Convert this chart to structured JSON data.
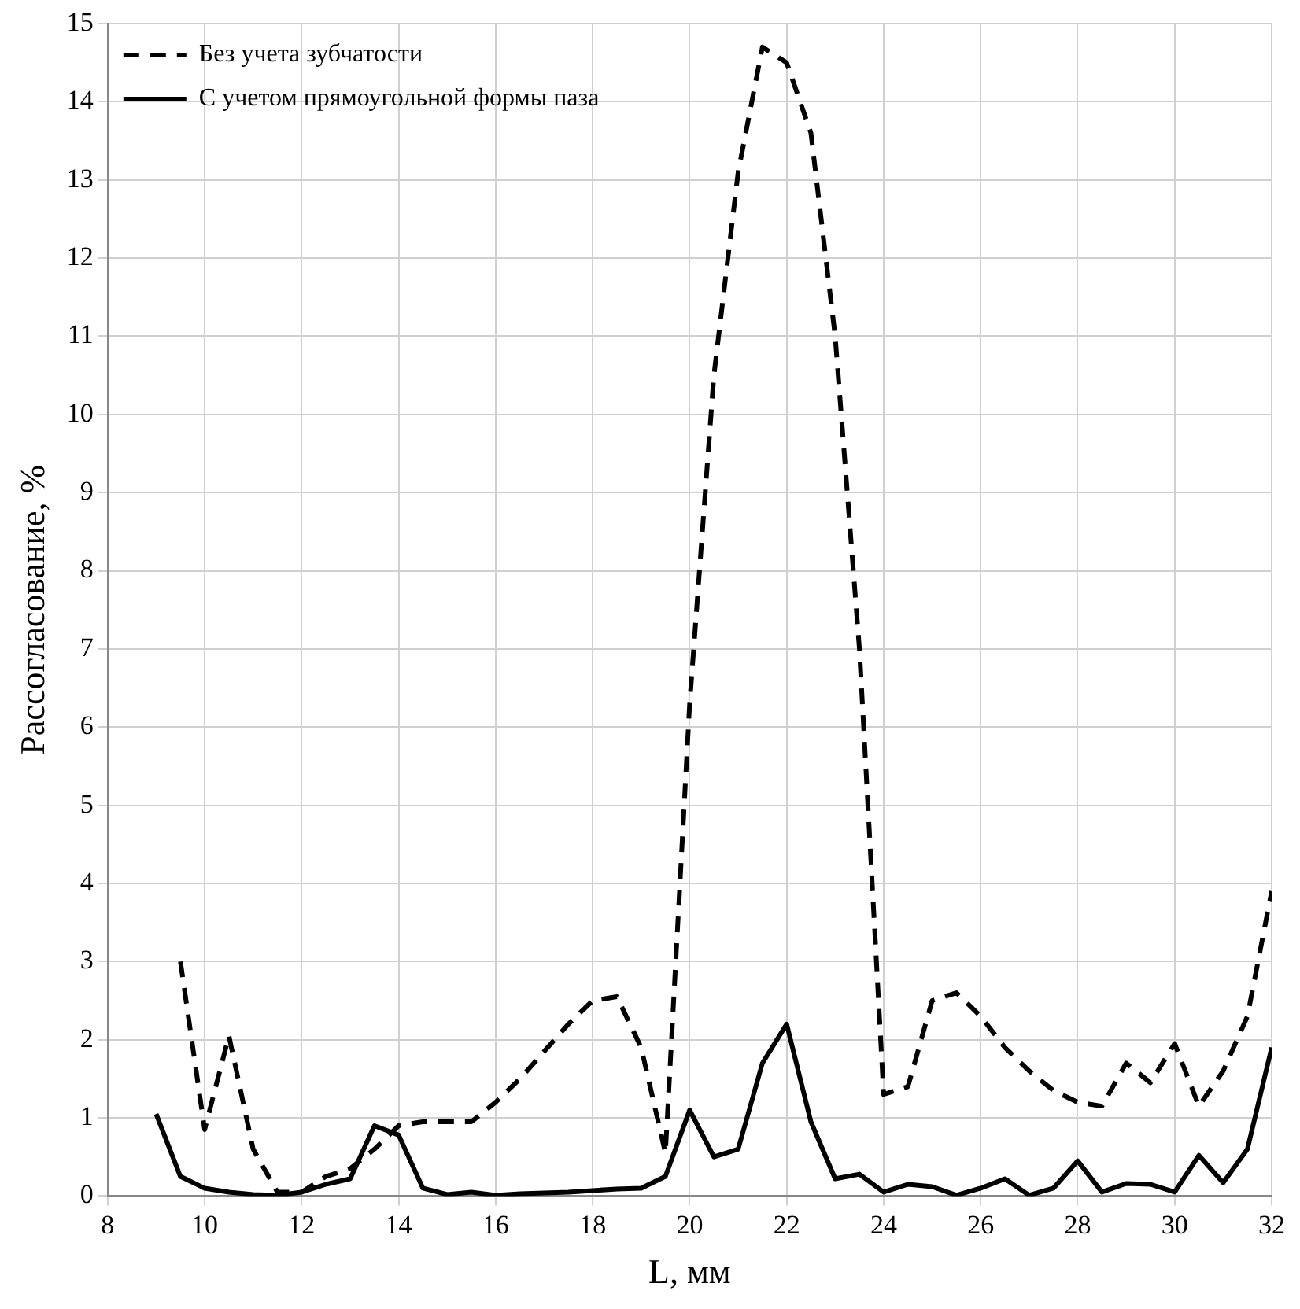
{
  "chart_data": {
    "type": "line",
    "xlabel": "L, мм",
    "ylabel": "Рассогласование, %",
    "xlim": [
      8,
      32
    ],
    "xticks": [
      8,
      10,
      12,
      14,
      16,
      18,
      20,
      22,
      24,
      26,
      28,
      30,
      32
    ],
    "ylim": [
      0,
      15
    ],
    "yticks": [
      0,
      1,
      2,
      3,
      4,
      5,
      6,
      7,
      8,
      9,
      10,
      11,
      12,
      13,
      14,
      15
    ],
    "grid": true,
    "legend": "top left",
    "marker": "none",
    "series": [
      {
        "name": "Без учета зубчатости",
        "color": "#000000",
        "line_style": "dashed",
        "x": [
          9.5,
          10,
          10.5,
          11,
          11.5,
          12,
          12.5,
          13,
          13.5,
          14,
          14.5,
          15,
          15.5,
          16,
          16.5,
          17,
          17.5,
          18,
          18.5,
          19,
          19.5,
          20,
          20.5,
          21,
          21.5,
          22,
          22.5,
          23,
          23.5,
          24,
          24.5,
          25,
          25.5,
          26,
          26.5,
          27,
          27.5,
          28,
          28.5,
          29,
          29.5,
          30,
          30.5,
          31,
          31.5,
          32
        ],
        "values": [
          3.0,
          0.85,
          2.05,
          0.6,
          0.05,
          0.05,
          0.25,
          0.35,
          0.6,
          0.9,
          0.95,
          0.95,
          0.95,
          1.2,
          1.5,
          1.85,
          2.2,
          2.5,
          2.55,
          1.9,
          0.55,
          6.3,
          10.5,
          13.1,
          14.7,
          14.5,
          13.6,
          11,
          7,
          1.3,
          1.4,
          2.5,
          2.6,
          2.3,
          1.9,
          1.6,
          1.35,
          1.2,
          1.15,
          1.7,
          1.45,
          1.95,
          1.15,
          1.6,
          2.3,
          3.9
        ]
      },
      {
        "name": "С учетом прямоугольной формы паза",
        "color": "#000000",
        "line_style": "solid",
        "x": [
          9,
          9.5,
          10,
          10.5,
          11,
          11.5,
          12,
          12.5,
          13,
          13.5,
          14,
          14.5,
          15,
          15.5,
          16,
          16.5,
          17,
          17.5,
          18,
          18.5,
          19,
          19.5,
          20,
          20.5,
          21,
          21.5,
          22,
          22.5,
          23,
          23.5,
          24,
          24.5,
          25,
          25.5,
          26,
          26.5,
          27,
          27.5,
          28,
          28.5,
          29,
          29.5,
          30,
          30.5,
          31,
          31.5,
          32
        ],
        "values": [
          1.05,
          0.25,
          0.1,
          0.05,
          0.02,
          0.01,
          0.05,
          0.15,
          0.22,
          0.9,
          0.78,
          0.1,
          0.02,
          0.05,
          0.01,
          0.03,
          0.04,
          0.05,
          0.07,
          0.09,
          0.1,
          0.25,
          1.1,
          0.5,
          0.6,
          1.7,
          2.2,
          0.95,
          0.22,
          0.28,
          0.05,
          0.15,
          0.12,
          0.01,
          0.1,
          0.22,
          0.01,
          0.1,
          0.45,
          0.05,
          0.16,
          0.15,
          0.05,
          0.52,
          0.17,
          0.6,
          1.9
        ]
      }
    ]
  }
}
